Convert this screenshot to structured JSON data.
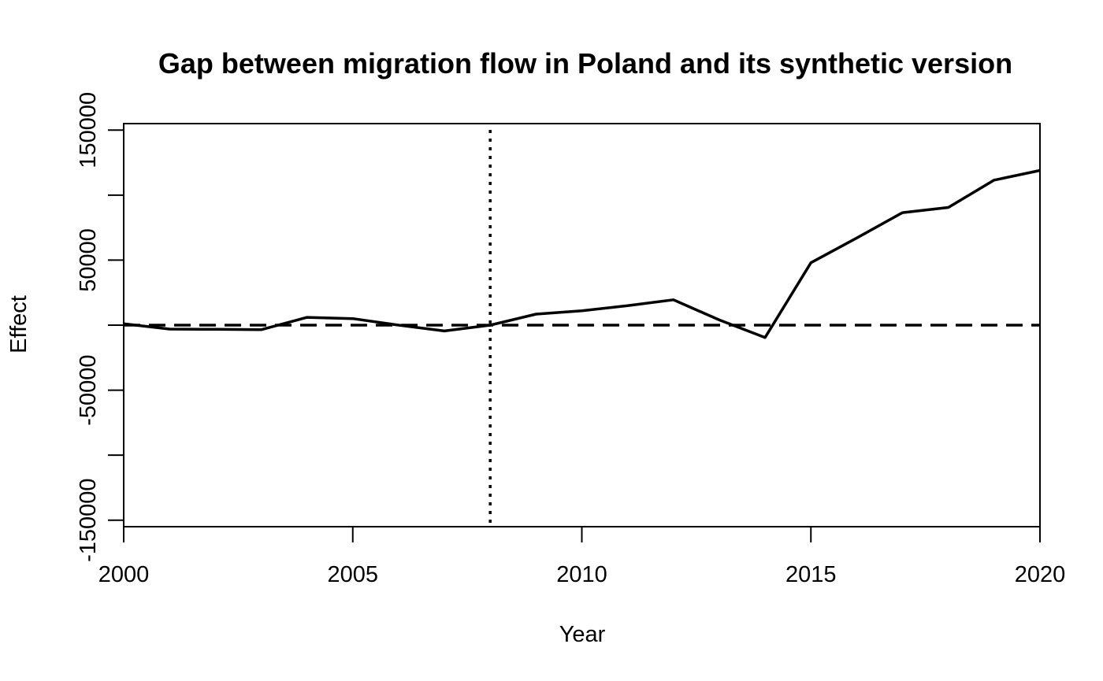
{
  "chart_data": {
    "type": "line",
    "title": "Gap between migration flow in Poland and its synthetic version",
    "xlabel": "Year",
    "ylabel": "Effect",
    "xlim": [
      2000,
      2020
    ],
    "ylim": [
      -155000,
      155000
    ],
    "x_ticks": [
      2000,
      2005,
      2010,
      2015,
      2020
    ],
    "x_tick_labels": [
      "2000",
      "2005",
      "2010",
      "2015",
      "2020"
    ],
    "y_ticks": [
      -150000,
      -100000,
      -50000,
      0,
      50000,
      100000,
      150000
    ],
    "y_tick_labels": [
      "-150000",
      "",
      "-50000",
      "",
      "50000",
      "",
      "150000"
    ],
    "treatment_year": 2008,
    "reference_line_y": 0,
    "grid": false,
    "legend": "none",
    "series": [
      {
        "x": [
          2000,
          2001,
          2002,
          2003,
          2004,
          2005,
          2006,
          2007,
          2008,
          2009,
          2010,
          2011,
          2012,
          2013,
          2014,
          2015,
          2016,
          2017,
          2018,
          2019,
          2020
        ],
        "values": [
          1000,
          -3000,
          -3200,
          -3500,
          6000,
          5000,
          0,
          -4500,
          0,
          8500,
          11000,
          15000,
          19500,
          4000,
          -9500,
          48000,
          67000,
          86500,
          90500,
          111500,
          119000
        ]
      }
    ]
  }
}
